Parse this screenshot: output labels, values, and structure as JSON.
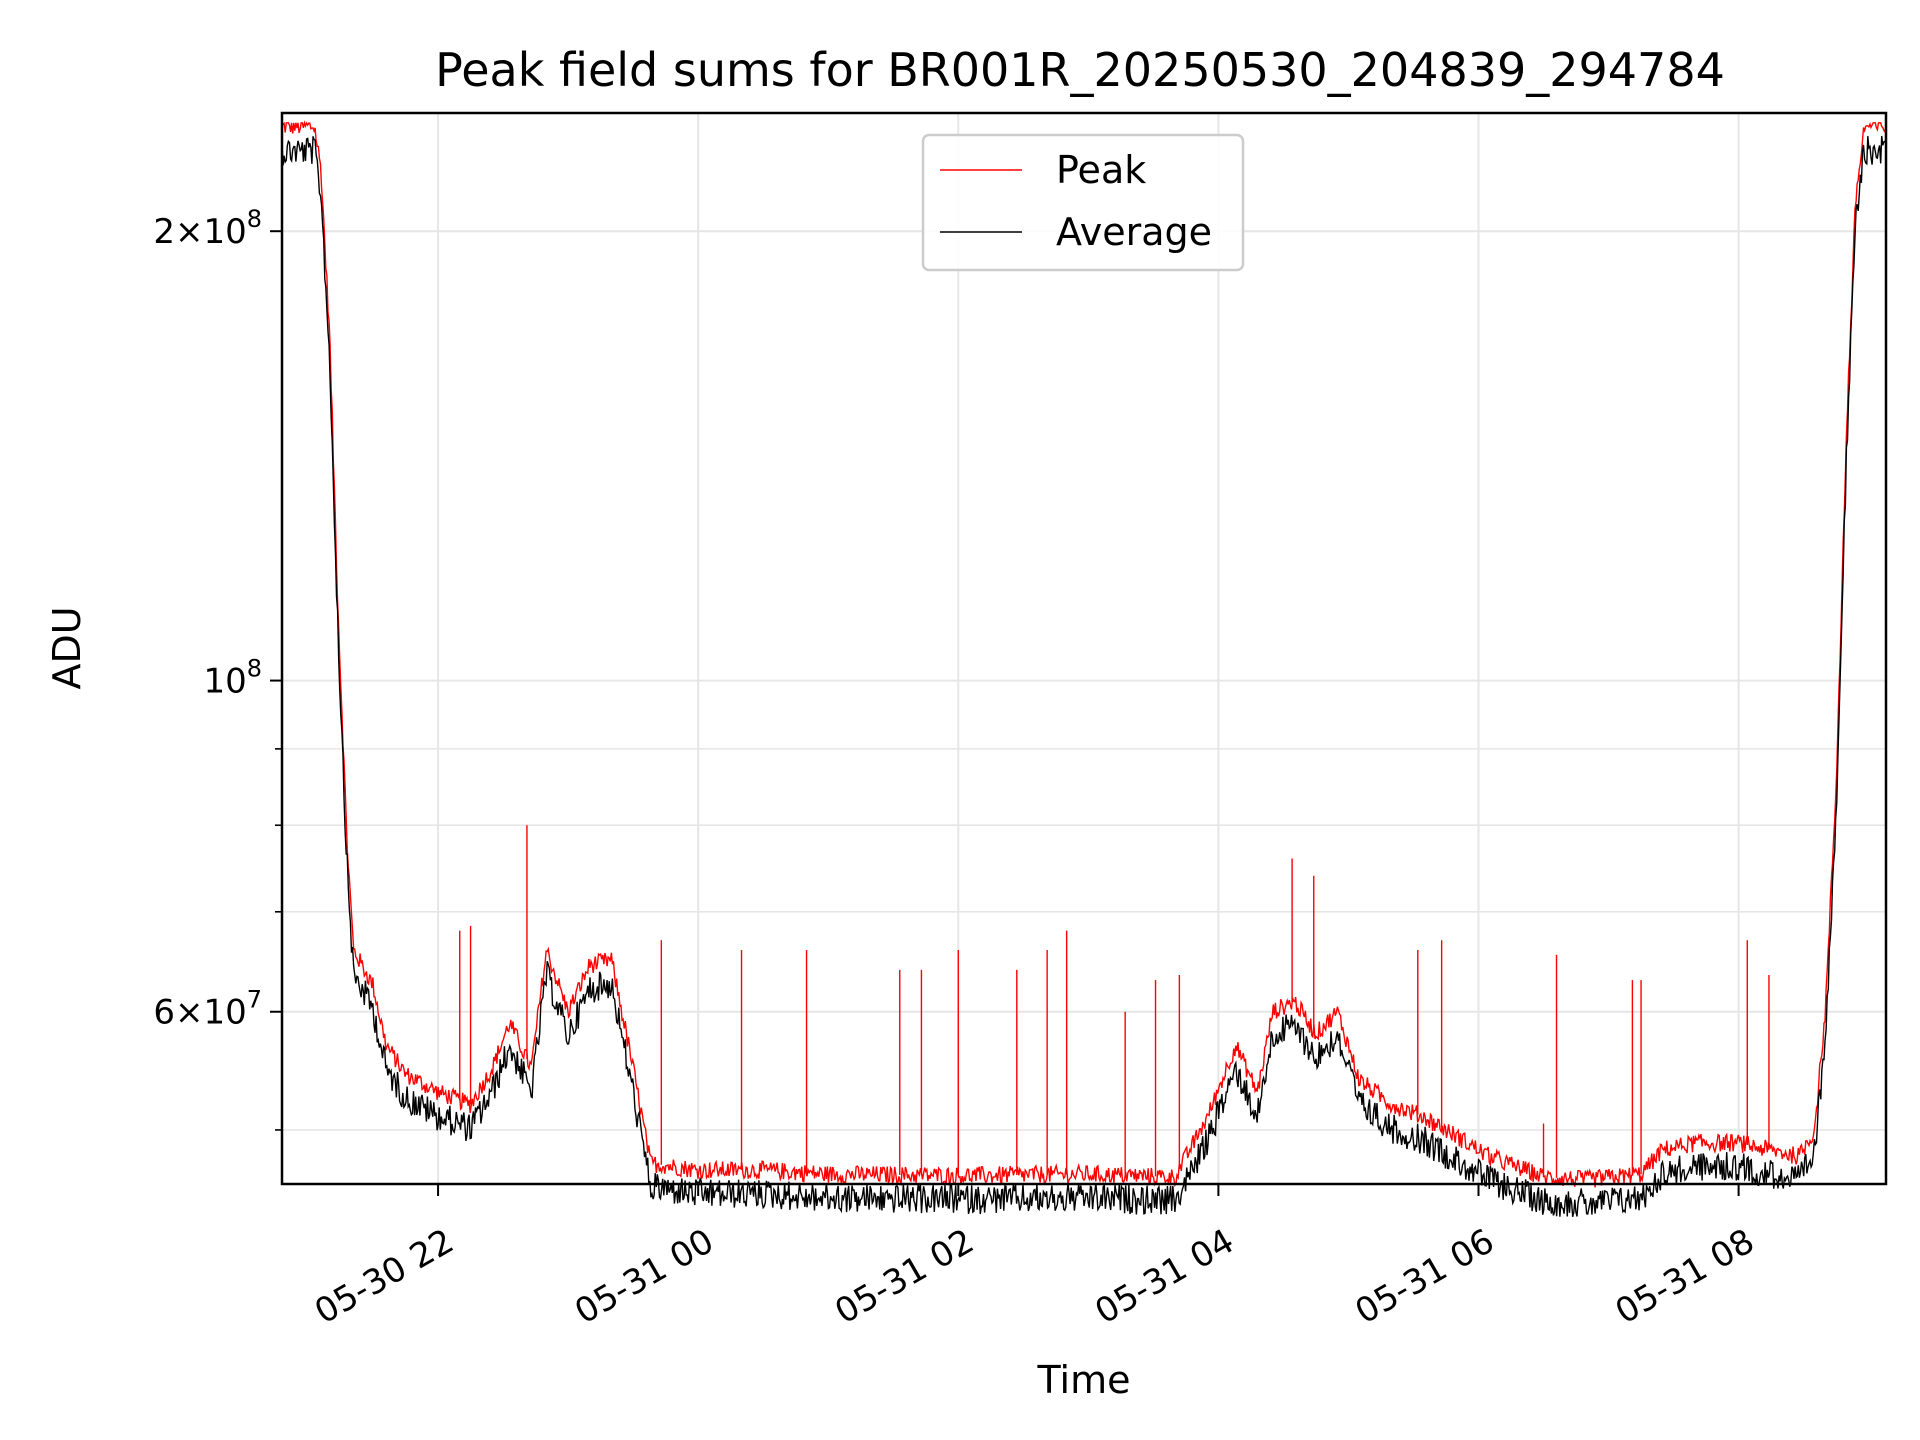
{
  "chart_data": {
    "type": "line",
    "title": "Peak field sums for BR001R_20250530_204839_294784",
    "xlabel": "Time",
    "ylabel": "ADU",
    "x_scale": "time",
    "y_scale": "log",
    "xlim": [
      "2025-05-30 20:48",
      "2025-05-31 09:08"
    ],
    "ylim": [
      46000000,
      240000000
    ],
    "grid": true,
    "legend_position": "upper center",
    "x_ticks": [
      {
        "value": "2025-05-30 22:00",
        "label": "05-30 22"
      },
      {
        "value": "2025-05-31 00:00",
        "label": "05-31 00"
      },
      {
        "value": "2025-05-31 02:00",
        "label": "05-31 02"
      },
      {
        "value": "2025-05-31 04:00",
        "label": "05-31 04"
      },
      {
        "value": "2025-05-31 06:00",
        "label": "05-31 06"
      },
      {
        "value": "2025-05-31 08:00",
        "label": "05-31 08"
      }
    ],
    "y_major_ticks": [
      {
        "value": 200000000,
        "mantissa": "2",
        "exponent": "8"
      },
      {
        "value": 100000000,
        "mantissa": "",
        "exponent": "8"
      },
      {
        "value": 60000000,
        "mantissa": "6",
        "exponent": "7"
      }
    ],
    "y_minor_ticks": [
      50000000,
      70000000,
      80000000,
      90000000
    ],
    "series": [
      {
        "name": "Peak",
        "color": "#ff0000",
        "baseline": [
          [
            "2025-05-30 20:48",
            235000000
          ],
          [
            "2025-05-30 21:03",
            235000000
          ],
          [
            "2025-05-30 21:06",
            220000000
          ],
          [
            "2025-05-30 21:10",
            170000000
          ],
          [
            "2025-05-30 21:14",
            110000000
          ],
          [
            "2025-05-30 21:18",
            78000000
          ],
          [
            "2025-05-30 21:21",
            66000000
          ],
          [
            "2025-05-30 21:30",
            62500000
          ],
          [
            "2025-05-30 21:36",
            57000000
          ],
          [
            "2025-05-30 21:45",
            54500000
          ],
          [
            "2025-05-30 22:00",
            53000000
          ],
          [
            "2025-05-30 22:15",
            52000000
          ],
          [
            "2025-05-30 22:25",
            55000000
          ],
          [
            "2025-05-30 22:33",
            59000000
          ],
          [
            "2025-05-30 22:43",
            55000000
          ],
          [
            "2025-05-30 22:50",
            66000000
          ],
          [
            "2025-05-30 23:00",
            60000000
          ],
          [
            "2025-05-30 23:10",
            64500000
          ],
          [
            "2025-05-30 23:20",
            65000000
          ],
          [
            "2025-05-30 23:30",
            55000000
          ],
          [
            "2025-05-30 23:38",
            47500000
          ],
          [
            "2025-05-31 00:00",
            47000000
          ],
          [
            "2025-05-31 00:30",
            47000000
          ],
          [
            "2025-05-31 01:00",
            46700000
          ],
          [
            "2025-05-31 02:00",
            46600000
          ],
          [
            "2025-05-31 03:00",
            46700000
          ],
          [
            "2025-05-31 03:40",
            46500000
          ],
          [
            "2025-05-31 03:55",
            51000000
          ],
          [
            "2025-05-31 04:08",
            57000000
          ],
          [
            "2025-05-31 04:18",
            53000000
          ],
          [
            "2025-05-31 04:25",
            60000000
          ],
          [
            "2025-05-31 04:35",
            61000000
          ],
          [
            "2025-05-31 04:45",
            58000000
          ],
          [
            "2025-05-31 04:55",
            60000000
          ],
          [
            "2025-05-31 05:05",
            54000000
          ],
          [
            "2025-05-31 05:20",
            52000000
          ],
          [
            "2025-05-31 05:35",
            51000000
          ],
          [
            "2025-05-31 05:50",
            49500000
          ],
          [
            "2025-05-31 06:05",
            48000000
          ],
          [
            "2025-05-31 06:30",
            46500000
          ],
          [
            "2025-05-31 06:50",
            46300000
          ],
          [
            "2025-05-31 07:15",
            46700000
          ],
          [
            "2025-05-31 07:25",
            48500000
          ],
          [
            "2025-05-31 07:40",
            49000000
          ],
          [
            "2025-05-31 08:00",
            49000000
          ],
          [
            "2025-05-31 08:28",
            48000000
          ],
          [
            "2025-05-31 08:35",
            50000000
          ],
          [
            "2025-05-31 08:40",
            60000000
          ],
          [
            "2025-05-31 08:45",
            85000000
          ],
          [
            "2025-05-31 08:50",
            150000000
          ],
          [
            "2025-05-31 08:54",
            210000000
          ],
          [
            "2025-05-31 08:58",
            235000000
          ],
          [
            "2025-05-31 09:08",
            235000000
          ]
        ],
        "spikes": [
          [
            "2025-05-30 22:10",
            68000000
          ],
          [
            "2025-05-30 22:15",
            68500000
          ],
          [
            "2025-05-30 22:41",
            80000000
          ],
          [
            "2025-05-30 23:43",
            67000000
          ],
          [
            "2025-05-31 00:20",
            66000000
          ],
          [
            "2025-05-31 00:50",
            66000000
          ],
          [
            "2025-05-31 01:33",
            64000000
          ],
          [
            "2025-05-31 01:43",
            64000000
          ],
          [
            "2025-05-31 02:00",
            66000000
          ],
          [
            "2025-05-31 02:27",
            64000000
          ],
          [
            "2025-05-31 02:41",
            66000000
          ],
          [
            "2025-05-31 02:50",
            68000000
          ],
          [
            "2025-05-31 03:17",
            60000000
          ],
          [
            "2025-05-31 03:31",
            63000000
          ],
          [
            "2025-05-31 03:42",
            63500000
          ],
          [
            "2025-05-31 04:34",
            76000000
          ],
          [
            "2025-05-31 04:44",
            74000000
          ],
          [
            "2025-05-31 05:32",
            66000000
          ],
          [
            "2025-05-31 05:43",
            67000000
          ],
          [
            "2025-05-31 06:30",
            50500000
          ],
          [
            "2025-05-31 06:36",
            65500000
          ],
          [
            "2025-05-31 07:11",
            63000000
          ],
          [
            "2025-05-31 07:15",
            63000000
          ],
          [
            "2025-05-31 08:04",
            67000000
          ],
          [
            "2025-05-31 08:14",
            63500000
          ]
        ]
      },
      {
        "name": "Average",
        "color": "#000000"
      }
    ]
  }
}
